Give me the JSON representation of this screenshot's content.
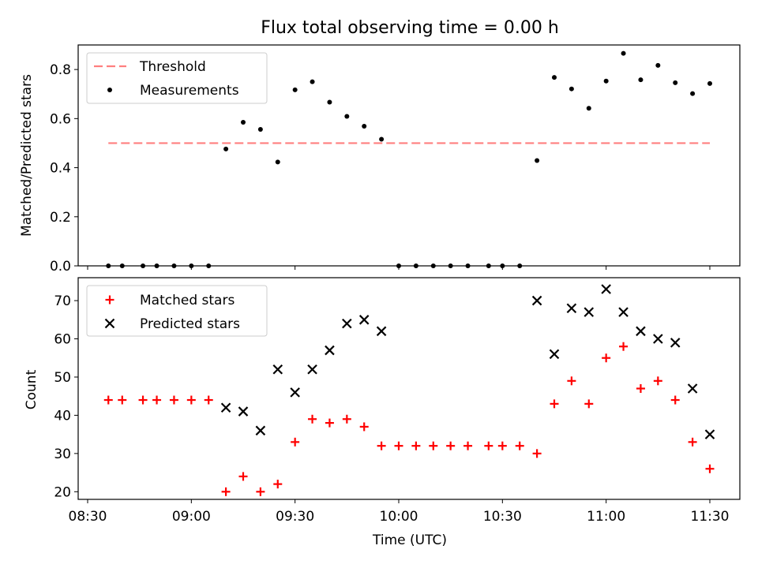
{
  "chart_data": [
    {
      "type": "scatter",
      "title": "Flux total observing time = 0.00 h",
      "xlabel": "",
      "ylabel": "Matched/Predicted stars",
      "ylim": [
        0,
        0.9
      ],
      "yticks": [
        "0.0",
        "0.2",
        "0.4",
        "0.6",
        "0.8"
      ],
      "grid": false,
      "legend": "top-left",
      "threshold": {
        "name": "Threshold",
        "value": 0.5,
        "x_start": "08:36",
        "x_end": "11:30",
        "color": "#ff7f7f"
      },
      "series": [
        {
          "name": "Measurements",
          "color": "#000000",
          "marker": "dot",
          "points": [
            [
              "08:36",
              0
            ],
            [
              "08:40",
              0
            ],
            [
              "08:46",
              0
            ],
            [
              "08:50",
              0
            ],
            [
              "08:55",
              0
            ],
            [
              "09:00",
              0
            ],
            [
              "09:05",
              0
            ],
            [
              "09:10",
              0.476
            ],
            [
              "09:15",
              0.585
            ],
            [
              "09:20",
              0.556
            ],
            [
              "09:25",
              0.423
            ],
            [
              "09:30",
              0.717
            ],
            [
              "09:35",
              0.75
            ],
            [
              "09:40",
              0.667
            ],
            [
              "09:45",
              0.609
            ],
            [
              "09:50",
              0.569
            ],
            [
              "09:55",
              0.516
            ],
            [
              "10:00",
              0
            ],
            [
              "10:05",
              0
            ],
            [
              "10:10",
              0
            ],
            [
              "10:15",
              0
            ],
            [
              "10:20",
              0
            ],
            [
              "10:26",
              0
            ],
            [
              "10:30",
              0
            ],
            [
              "10:35",
              0
            ],
            [
              "10:40",
              0.429
            ],
            [
              "10:45",
              0.768
            ],
            [
              "10:50",
              0.721
            ],
            [
              "10:55",
              0.642
            ],
            [
              "11:00",
              0.753
            ],
            [
              "11:05",
              0.866
            ],
            [
              "11:10",
              0.758
            ],
            [
              "11:15",
              0.817
            ],
            [
              "11:20",
              0.746
            ],
            [
              "11:25",
              0.702
            ],
            [
              "11:30",
              0.743
            ]
          ]
        }
      ]
    },
    {
      "type": "scatter",
      "title": "",
      "xlabel": "Time (UTC)",
      "ylabel": "Count",
      "xlim": [
        "08:30",
        "11:30"
      ],
      "xticks": [
        "08:30",
        "09:00",
        "09:30",
        "10:00",
        "10:30",
        "11:00",
        "11:30"
      ],
      "ylim": [
        18,
        76
      ],
      "yticks": [
        20,
        30,
        40,
        50,
        60,
        70
      ],
      "grid": false,
      "legend": "top-left",
      "series": [
        {
          "name": "Matched stars",
          "color": "#ff0000",
          "marker": "plus",
          "points": [
            [
              "08:36",
              44
            ],
            [
              "08:40",
              44
            ],
            [
              "08:46",
              44
            ],
            [
              "08:50",
              44
            ],
            [
              "08:55",
              44
            ],
            [
              "09:00",
              44
            ],
            [
              "09:05",
              44
            ],
            [
              "09:10",
              20
            ],
            [
              "09:15",
              24
            ],
            [
              "09:20",
              20
            ],
            [
              "09:25",
              22
            ],
            [
              "09:30",
              33
            ],
            [
              "09:35",
              39
            ],
            [
              "09:40",
              38
            ],
            [
              "09:45",
              39
            ],
            [
              "09:50",
              37
            ],
            [
              "09:55",
              32
            ],
            [
              "10:00",
              32
            ],
            [
              "10:05",
              32
            ],
            [
              "10:10",
              32
            ],
            [
              "10:15",
              32
            ],
            [
              "10:20",
              32
            ],
            [
              "10:26",
              32
            ],
            [
              "10:30",
              32
            ],
            [
              "10:35",
              32
            ],
            [
              "10:40",
              30
            ],
            [
              "10:45",
              43
            ],
            [
              "10:50",
              49
            ],
            [
              "10:55",
              43
            ],
            [
              "11:00",
              55
            ],
            [
              "11:05",
              58
            ],
            [
              "11:10",
              47
            ],
            [
              "11:15",
              49
            ],
            [
              "11:20",
              44
            ],
            [
              "11:25",
              33
            ],
            [
              "11:30",
              26
            ]
          ]
        },
        {
          "name": "Predicted stars",
          "color": "#000000",
          "marker": "x",
          "points": [
            [
              "09:10",
              42
            ],
            [
              "09:15",
              41
            ],
            [
              "09:20",
              36
            ],
            [
              "09:25",
              52
            ],
            [
              "09:30",
              46
            ],
            [
              "09:35",
              52
            ],
            [
              "09:40",
              57
            ],
            [
              "09:45",
              64
            ],
            [
              "09:50",
              65
            ],
            [
              "09:55",
              62
            ],
            [
              "10:40",
              70
            ],
            [
              "10:45",
              56
            ],
            [
              "10:50",
              68
            ],
            [
              "10:55",
              67
            ],
            [
              "11:00",
              73
            ],
            [
              "11:05",
              67
            ],
            [
              "11:10",
              62
            ],
            [
              "11:15",
              60
            ],
            [
              "11:20",
              59
            ],
            [
              "11:25",
              47
            ],
            [
              "11:30",
              35
            ]
          ]
        }
      ]
    }
  ]
}
